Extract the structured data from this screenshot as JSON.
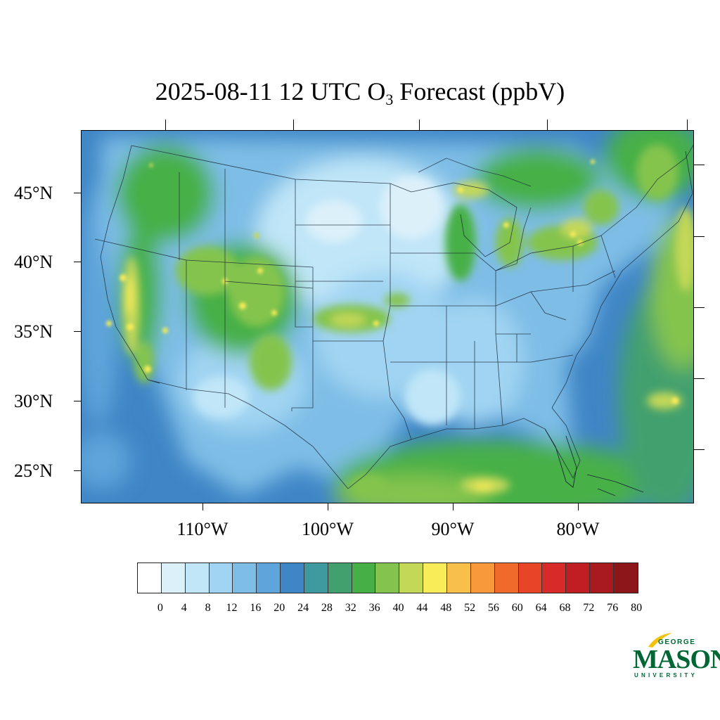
{
  "title": {
    "prefix": "2025-08-11 12 UTC O",
    "subscript": "3",
    "suffix": " Forecast (ppbV)"
  },
  "axes": {
    "lat_labels": [
      "45°N",
      "40°N",
      "35°N",
      "30°N",
      "25°N"
    ],
    "lon_labels": [
      "110°W",
      "100°W",
      "90°W",
      "80°W"
    ]
  },
  "map": {
    "field": "O3 forecast",
    "units": "ppbV",
    "lon_range": [
      -119.5,
      -70.5
    ],
    "lat_range": [
      22.5,
      49.3
    ],
    "regions": [
      {
        "area": "Gulf of Mexico (south)",
        "level": "36-44, local 48"
      },
      {
        "area": "Atlantic offshore",
        "level": "16-24"
      },
      {
        "area": "Atlantic far offshore",
        "level": "32-44"
      },
      {
        "area": "Pacific offshore",
        "level": "16-24"
      },
      {
        "area": "California Central Valley / Sierra",
        "level": "40-52"
      },
      {
        "area": "Four Corners / Colorado",
        "level": "32-48"
      },
      {
        "area": "Kansas",
        "level": "40-48"
      },
      {
        "area": "Upper Midwest",
        "level": "4-16"
      },
      {
        "area": "Northeast / Great Lakes",
        "level": "32-48"
      }
    ]
  },
  "colorbar": {
    "colors": [
      "#ffffff",
      "#dcf0fa",
      "#c0e6f8",
      "#a0d4f2",
      "#7ebde6",
      "#5fa4da",
      "#3f86c6",
      "#3f9aa0",
      "#42a06e",
      "#46b046",
      "#84c44e",
      "#c4d858",
      "#f8ec58",
      "#f8c04a",
      "#f89a3c",
      "#f06a2c",
      "#e84428",
      "#d82a28",
      "#c01e22",
      "#a81a1e",
      "#8c161a"
    ],
    "labels": [
      "0",
      "4",
      "8",
      "12",
      "16",
      "20",
      "24",
      "28",
      "32",
      "36",
      "40",
      "44",
      "48",
      "52",
      "56",
      "60",
      "64",
      "68",
      "72",
      "76",
      "80"
    ]
  },
  "logo": {
    "line1": "GEORGE",
    "line2": "MASON",
    "line3": "UNIVERSITY",
    "color": "#006633",
    "accent": "#f2c30c"
  }
}
